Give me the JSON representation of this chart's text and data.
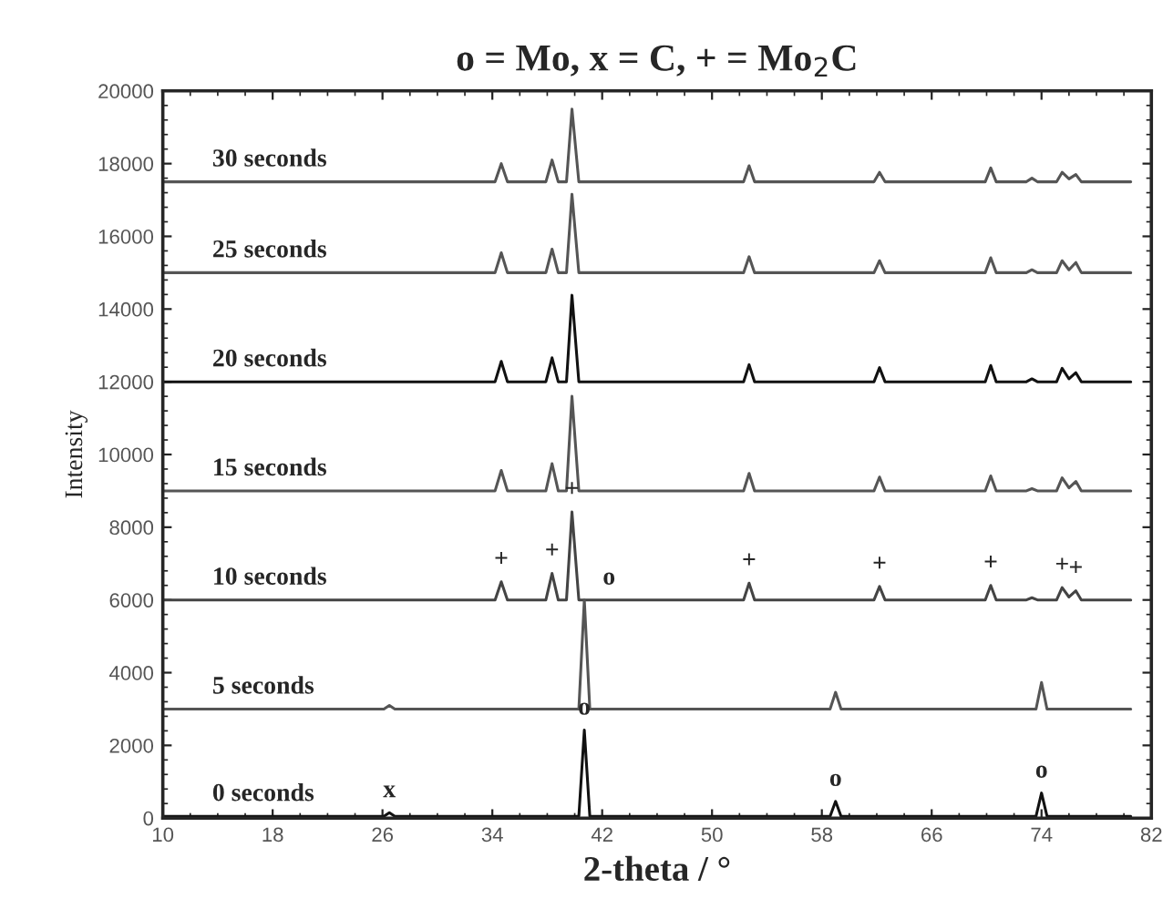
{
  "chart_data": {
    "type": "line",
    "title": "o = Mo, x = C, + = Mo$_{2}$C",
    "xlabel": "2-theta / °",
    "ylabel": "Intensity",
    "xlim": [
      10,
      82
    ],
    "xticks": [
      10,
      18,
      26,
      34,
      42,
      50,
      58,
      66,
      74,
      82
    ],
    "ylim": [
      0,
      20000
    ],
    "yticks": [
      0,
      2000,
      4000,
      6000,
      8000,
      10000,
      12000,
      14000,
      16000,
      18000,
      20000
    ],
    "grid": false,
    "legend": false,
    "marker": "none",
    "line_style": "solid",
    "series": [
      {
        "name": "30 seconds",
        "color": "#555555",
        "x": [
          10,
          34.2,
          34.65,
          35.1,
          37.9,
          38.35,
          38.8,
          39.4,
          39.8,
          40.3,
          52.3,
          52.7,
          53.1,
          61.8,
          62.2,
          62.6,
          69.9,
          70.3,
          70.7,
          72.9,
          73.3,
          73.7,
          75.1,
          75.5,
          76.0,
          76.5,
          76.9,
          80.5
        ],
        "values": [
          17500,
          17500,
          18000,
          17500,
          17500,
          18100,
          17500,
          17500,
          19500,
          17500,
          17500,
          17940,
          17500,
          17500,
          17760,
          17500,
          17500,
          17880,
          17500,
          17500,
          17600,
          17500,
          17500,
          17760,
          17580,
          17700,
          17500,
          17500
        ]
      },
      {
        "name": "25 seconds",
        "color": "#555555",
        "x": [
          10,
          34.2,
          34.65,
          35.1,
          37.9,
          38.35,
          38.8,
          39.4,
          39.8,
          40.3,
          52.3,
          52.7,
          53.1,
          61.8,
          62.2,
          62.6,
          69.9,
          70.3,
          70.7,
          72.9,
          73.3,
          73.7,
          75.1,
          75.5,
          76.0,
          76.5,
          76.9,
          80.5
        ],
        "values": [
          15000,
          15000,
          15550,
          15000,
          15000,
          15650,
          15000,
          15000,
          17160,
          15000,
          15000,
          15440,
          15000,
          15000,
          15330,
          15000,
          15000,
          15410,
          15000,
          15000,
          15080,
          15000,
          15000,
          15330,
          15080,
          15280,
          15000,
          15000
        ]
      },
      {
        "name": "20 seconds",
        "color": "#111111",
        "x": [
          10,
          34.2,
          34.65,
          35.1,
          37.9,
          38.35,
          38.8,
          39.4,
          39.8,
          40.3,
          52.3,
          52.7,
          53.1,
          61.8,
          62.2,
          62.6,
          69.9,
          70.3,
          70.7,
          72.9,
          73.3,
          73.7,
          75.1,
          75.5,
          76.0,
          76.5,
          76.9,
          80.5
        ],
        "values": [
          12000,
          12000,
          12560,
          12000,
          12000,
          12660,
          12000,
          12000,
          14380,
          12000,
          12000,
          12470,
          12000,
          12000,
          12390,
          12000,
          12000,
          12450,
          12000,
          12000,
          12080,
          12000,
          12000,
          12370,
          12080,
          12250,
          12000,
          12000
        ]
      },
      {
        "name": "15 seconds",
        "color": "#555555",
        "x": [
          10,
          34.2,
          34.65,
          35.1,
          37.9,
          38.35,
          38.8,
          39.4,
          39.8,
          40.3,
          52.3,
          52.7,
          53.1,
          61.8,
          62.2,
          62.6,
          69.9,
          70.3,
          70.7,
          72.9,
          73.3,
          73.7,
          75.1,
          75.5,
          76.0,
          76.5,
          76.9,
          80.5
        ],
        "values": [
          9000,
          9000,
          9560,
          9000,
          9000,
          9750,
          9000,
          9000,
          11600,
          9000,
          9000,
          9480,
          9000,
          9000,
          9380,
          9000,
          9000,
          9410,
          9000,
          9000,
          9060,
          9000,
          9000,
          9360,
          9080,
          9260,
          9000,
          9000
        ]
      },
      {
        "name": "10 seconds",
        "color": "#444444",
        "x": [
          10,
          34.2,
          34.65,
          35.1,
          37.9,
          38.35,
          38.8,
          39.4,
          39.8,
          40.3,
          52.3,
          52.7,
          53.1,
          61.8,
          62.2,
          62.6,
          69.9,
          70.3,
          70.7,
          72.9,
          73.3,
          73.7,
          75.1,
          75.5,
          76.0,
          76.5,
          76.9,
          80.5
        ],
        "values": [
          6000,
          6000,
          6500,
          6000,
          6000,
          6730,
          6000,
          6000,
          8420,
          6000,
          6000,
          6460,
          6000,
          6000,
          6370,
          6000,
          6000,
          6400,
          6000,
          6000,
          6060,
          6000,
          6000,
          6340,
          6080,
          6250,
          6000,
          6000
        ]
      },
      {
        "name": "5 seconds",
        "color": "#555555",
        "x": [
          10,
          26.1,
          26.5,
          26.9,
          40.3,
          40.7,
          41.1,
          58.6,
          59.0,
          59.4,
          73.6,
          74.0,
          74.4,
          80.5
        ],
        "values": [
          3000,
          3000,
          3100,
          3000,
          3000,
          6000,
          3000,
          3000,
          3460,
          3000,
          3000,
          3730,
          3000,
          3000
        ]
      },
      {
        "name": "0 seconds",
        "color": "#111111",
        "x": [
          10,
          26.1,
          26.5,
          26.9,
          40.3,
          40.7,
          41.1,
          58.6,
          59.0,
          59.4,
          73.6,
          74.0,
          74.4,
          80.5
        ],
        "values": [
          50,
          50,
          150,
          50,
          50,
          2420,
          50,
          50,
          460,
          50,
          50,
          690,
          50,
          50
        ]
      }
    ],
    "annotations": [
      {
        "text": "x",
        "x": 26.5,
        "y": 150
      },
      {
        "text": "o",
        "x": 40.7,
        "y": 2420
      },
      {
        "text": "o",
        "x": 59.0,
        "y": 460
      },
      {
        "text": "o",
        "x": 74.0,
        "y": 690
      },
      {
        "text": "+",
        "x": 34.65,
        "y": 6500
      },
      {
        "text": "+",
        "x": 38.35,
        "y": 6730
      },
      {
        "text": "+",
        "x": 39.8,
        "y": 8420
      },
      {
        "text": "o",
        "x": 42.5,
        "y": 6000
      },
      {
        "text": "+",
        "x": 52.7,
        "y": 6460
      },
      {
        "text": "+",
        "x": 62.2,
        "y": 6370
      },
      {
        "text": "+",
        "x": 70.3,
        "y": 6400
      },
      {
        "text": "+",
        "x": 75.5,
        "y": 6340
      },
      {
        "text": "+",
        "x": 76.5,
        "y": 6250
      }
    ]
  }
}
